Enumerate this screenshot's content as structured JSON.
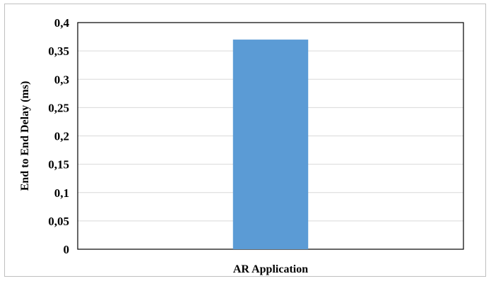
{
  "chart_data": {
    "type": "bar",
    "title": "",
    "categories": [
      "AR Application"
    ],
    "values": [
      0.37
    ],
    "xlabel": "AR Application",
    "ylabel": "End to End Delay (ms)",
    "ylim": [
      0,
      0.4
    ],
    "yticks": [
      "0",
      "0,05",
      "0,1",
      "0,15",
      "0,2",
      "0,25",
      "0,3",
      "0,35",
      "0,4"
    ],
    "yticks_values": [
      0,
      0.05,
      0.1,
      0.15,
      0.2,
      0.25,
      0.3,
      0.35,
      0.4
    ],
    "grid": true,
    "legend": "none",
    "bar_color": "#5b9bd5",
    "grid_color": "#d9d9d9",
    "axis_color": "#000000"
  }
}
